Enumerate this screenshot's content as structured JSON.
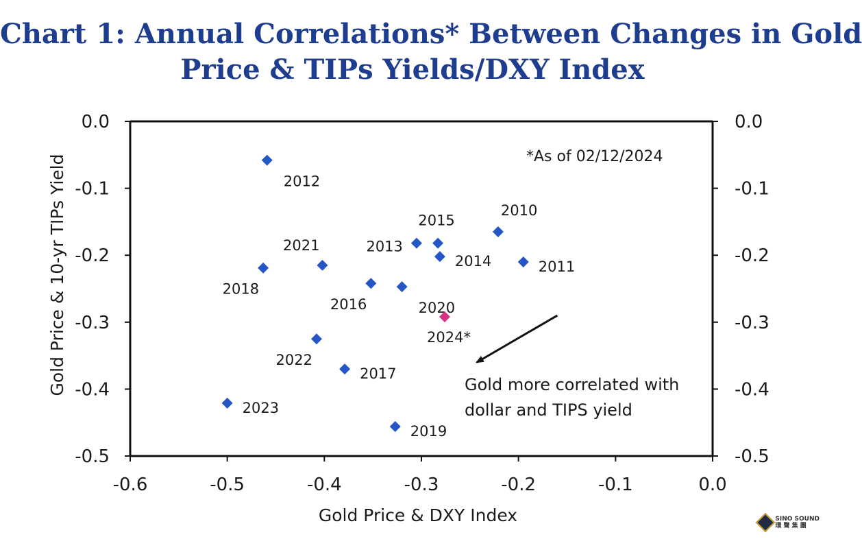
{
  "title": {
    "line1": "Chart 1: Annual Correlations* Between Changes in Gold",
    "line2": "Price & TIPs Yields/DXY Index"
  },
  "chart_data": {
    "type": "scatter",
    "title": "Chart 1: Annual Correlations* Between Changes in Gold Price & TIPs Yields/DXY Index",
    "xlabel": "Gold Price & DXY Index",
    "ylabel": "Gold Price & 10-yr TIPs Yield",
    "xlim": [
      -0.6,
      0.0
    ],
    "ylim": [
      -0.5,
      0.0
    ],
    "x_ticks": [
      "-0.6",
      "-0.5",
      "-0.4",
      "-0.3",
      "-0.2",
      "-0.1",
      "0.0"
    ],
    "x_tick_values": [
      -0.6,
      -0.5,
      -0.4,
      -0.3,
      -0.2,
      -0.1,
      0.0
    ],
    "y_ticks": [
      "0.0",
      "-0.1",
      "-0.2",
      "-0.3",
      "-0.4",
      "-0.5"
    ],
    "y_tick_values": [
      0.0,
      -0.1,
      -0.2,
      -0.3,
      -0.4,
      -0.5
    ],
    "grid": false,
    "note": "*As of 02/12/2024",
    "annotation": {
      "lines": [
        "Gold more correlated with",
        "dollar and TIPS yield"
      ],
      "arrow_from": [
        -0.16,
        -0.29
      ],
      "arrow_to": [
        -0.243,
        -0.36
      ]
    },
    "points": [
      {
        "label": "2012",
        "x": -0.459,
        "y": -0.058,
        "color": "#2457c5",
        "label_pos": "below-right"
      },
      {
        "label": "2010",
        "x": -0.221,
        "y": -0.165,
        "color": "#2457c5",
        "label_pos": "above-right"
      },
      {
        "label": "2015",
        "x": -0.283,
        "y": -0.182,
        "color": "#2457c5",
        "label_pos": "above"
      },
      {
        "label": "2013",
        "x": -0.305,
        "y": -0.182,
        "color": "#2457c5",
        "label_pos": "left"
      },
      {
        "label": "2014",
        "x": -0.281,
        "y": -0.202,
        "color": "#2457c5",
        "label_pos": "right"
      },
      {
        "label": "2011",
        "x": -0.195,
        "y": -0.21,
        "color": "#2457c5",
        "label_pos": "right"
      },
      {
        "label": "2021",
        "x": -0.402,
        "y": -0.215,
        "color": "#2457c5",
        "label_pos": "above-left"
      },
      {
        "label": "2018",
        "x": -0.463,
        "y": -0.219,
        "color": "#2457c5",
        "label_pos": "below-left"
      },
      {
        "label": "2016",
        "x": -0.352,
        "y": -0.242,
        "color": "#2457c5",
        "label_pos": "below-left"
      },
      {
        "label": "2020",
        "x": -0.32,
        "y": -0.247,
        "color": "#2457c5",
        "label_pos": "below-right"
      },
      {
        "label": "2024*",
        "x": -0.276,
        "y": -0.292,
        "color": "#d63384",
        "label_pos": "below"
      },
      {
        "label": "2022",
        "x": -0.408,
        "y": -0.325,
        "color": "#2457c5",
        "label_pos": "below-left"
      },
      {
        "label": "2017",
        "x": -0.379,
        "y": -0.37,
        "color": "#2457c5",
        "label_pos": "right"
      },
      {
        "label": "2023",
        "x": -0.5,
        "y": -0.421,
        "color": "#2457c5",
        "label_pos": "right"
      },
      {
        "label": "2019",
        "x": -0.327,
        "y": -0.456,
        "color": "#2457c5",
        "label_pos": "right"
      }
    ]
  },
  "watermark": {
    "text_line1": "SINO SOUND",
    "text_line2": "環 聲 集 團",
    "icon": "diamond-logo-icon"
  }
}
